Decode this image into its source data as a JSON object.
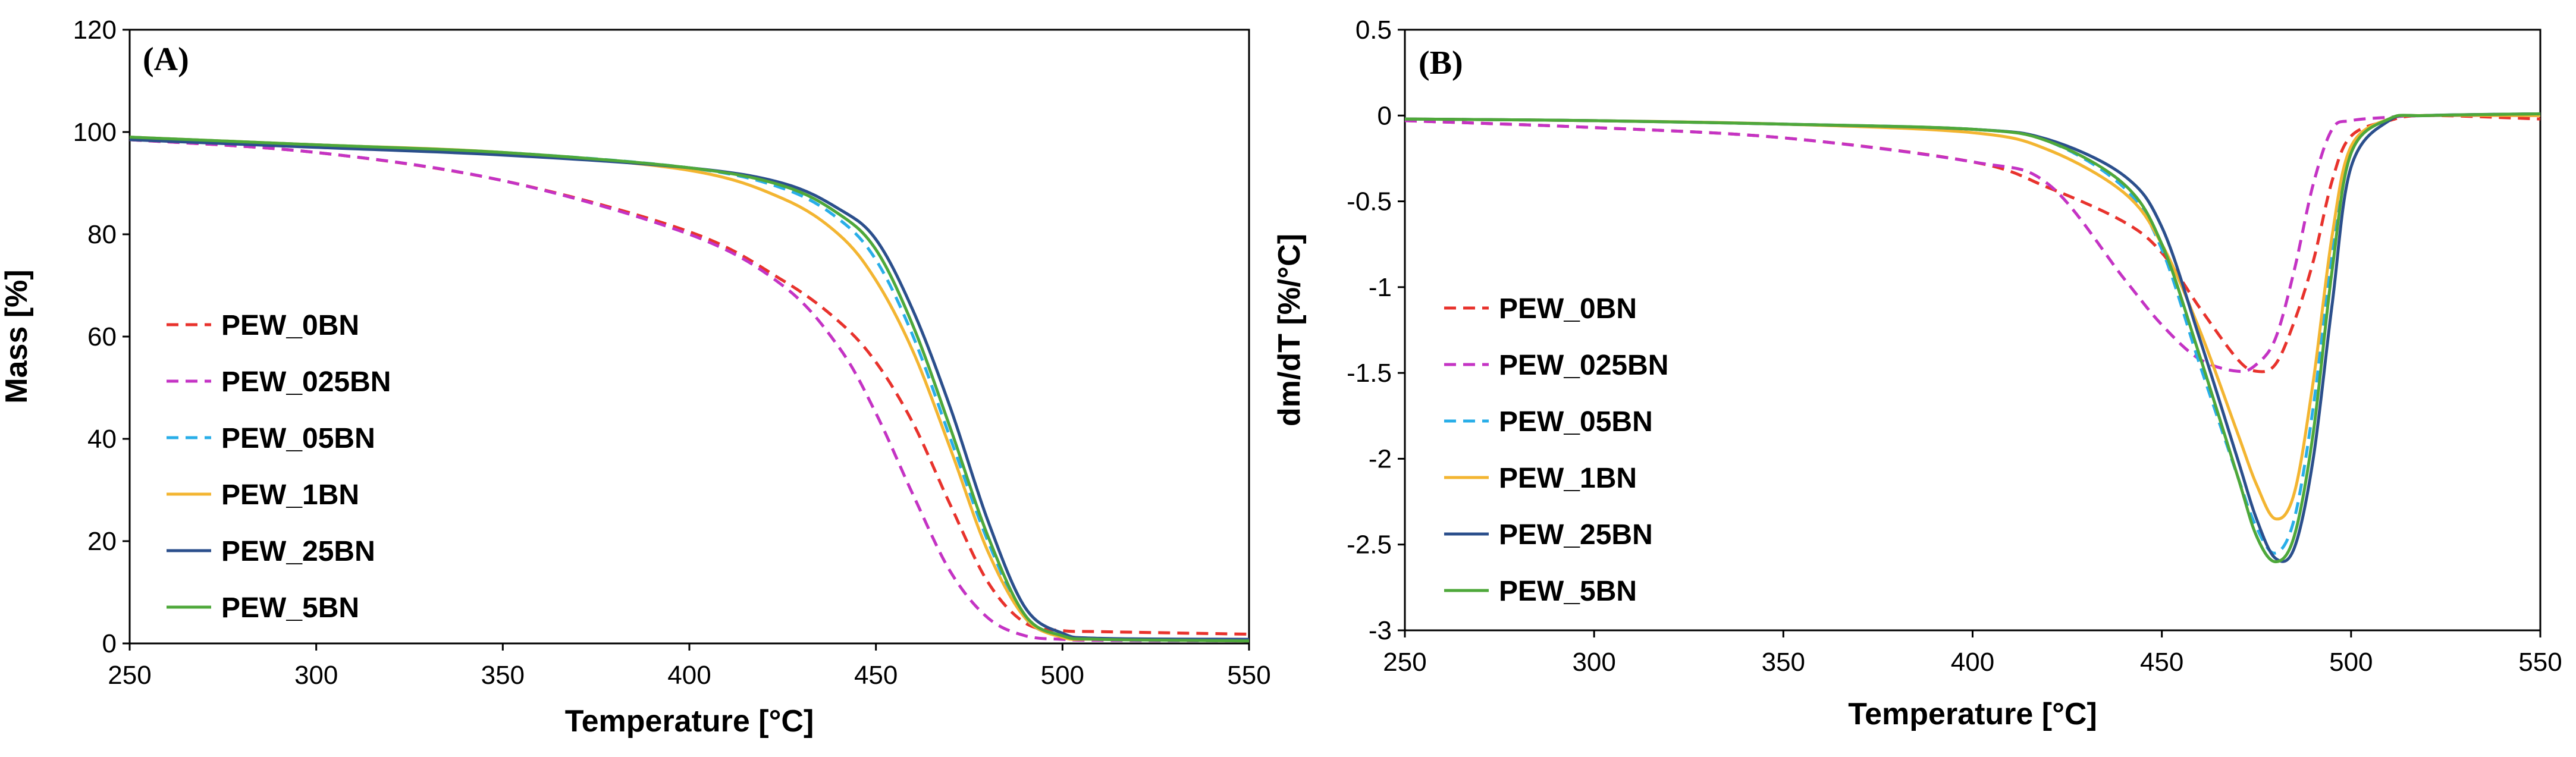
{
  "chart_data": [
    {
      "type": "line",
      "panel_label": "(A)",
      "xlabel": "Temperature [°C]",
      "ylabel": "Mass [%]",
      "xlim": [
        250,
        550
      ],
      "ylim": [
        0,
        120
      ],
      "xticks": [
        250,
        300,
        350,
        400,
        450,
        500,
        550
      ],
      "yticks": [
        0,
        20,
        40,
        60,
        80,
        100,
        120
      ],
      "x": [
        250,
        300,
        350,
        400,
        425,
        440,
        450,
        460,
        470,
        480,
        490,
        500,
        510,
        550
      ],
      "series": [
        {
          "name": "PEW_0BN",
          "color": "#e8322c",
          "dash": "dashed",
          "values": [
            98.5,
            96,
            90.5,
            80.5,
            71,
            63,
            55,
            43,
            27,
            12,
            4,
            2.5,
            2.3,
            1.8
          ]
        },
        {
          "name": "PEW_025BN",
          "color": "#c433c4",
          "dash": "dashed",
          "values": [
            98.5,
            96,
            90.5,
            80,
            70,
            58,
            45,
            29,
            14,
            5,
            1.5,
            0.8,
            0.6,
            0.5
          ]
        },
        {
          "name": "PEW_05BN",
          "color": "#29aee8",
          "dash": "dashed",
          "values": [
            99,
            97.5,
            96,
            93,
            89,
            83,
            75,
            60,
            40,
            20,
            5,
            1.5,
            0.8,
            0.5
          ]
        },
        {
          "name": "PEW_1BN",
          "color": "#f3b531",
          "dash": "solid",
          "values": [
            99,
            97.5,
            96,
            92.5,
            87,
            80,
            71,
            57,
            38,
            18,
            5,
            1.2,
            0.8,
            0.5
          ]
        },
        {
          "name": "PEW_25BN",
          "color": "#2b4f8c",
          "dash": "solid",
          "values": [
            98.5,
            97,
            95.5,
            93,
            90,
            85,
            79,
            65,
            46,
            24,
            7,
            2,
            1,
            0.8
          ]
        },
        {
          "name": "PEW_5BN",
          "color": "#4ea83a",
          "dash": "solid",
          "values": [
            99,
            97.5,
            96,
            93,
            89.5,
            84,
            77,
            62,
            42,
            21,
            5.5,
            1.5,
            0.8,
            0.5
          ]
        }
      ]
    },
    {
      "type": "line",
      "panel_label": "(B)",
      "xlabel": "Temperature [°C]",
      "ylabel": "dm/dT  [%/°C]",
      "xlim": [
        250,
        550
      ],
      "ylim": [
        -3,
        0.5
      ],
      "xticks": [
        250,
        300,
        350,
        400,
        450,
        500,
        550
      ],
      "yticks": [
        0.5,
        0,
        -0.5,
        -1,
        -1.5,
        -2,
        -2.5,
        -3
      ],
      "ytick_labels": [
        "0.5",
        "0",
        "-0.5",
        "-1",
        "-1.5",
        "-2",
        "-2.5",
        "-3"
      ],
      "x": [
        250,
        300,
        350,
        400,
        420,
        440,
        450,
        460,
        470,
        475,
        480,
        485,
        490,
        495,
        500,
        510,
        520,
        550
      ],
      "series": [
        {
          "name": "PEW_0BN",
          "color": "#e8322c",
          "dash": "dashed",
          "values": [
            -0.03,
            -0.07,
            -0.13,
            -0.27,
            -0.42,
            -0.62,
            -0.8,
            -1.12,
            -1.42,
            -1.49,
            -1.45,
            -1.2,
            -0.85,
            -0.38,
            -0.12,
            -0.03,
            0,
            -0.02
          ]
        },
        {
          "name": "PEW_025BN",
          "color": "#c433c4",
          "dash": "dashed",
          "values": [
            -0.03,
            -0.07,
            -0.13,
            -0.27,
            -0.4,
            -0.95,
            -1.22,
            -1.42,
            -1.49,
            -1.45,
            -1.3,
            -0.9,
            -0.4,
            -0.08,
            -0.03,
            -0.01,
            0,
            0
          ]
        },
        {
          "name": "PEW_05BN",
          "color": "#29aee8",
          "dash": "dashed",
          "values": [
            -0.02,
            -0.03,
            -0.05,
            -0.08,
            -0.15,
            -0.42,
            -0.78,
            -1.45,
            -2.1,
            -2.4,
            -2.55,
            -2.35,
            -1.7,
            -0.8,
            -0.2,
            -0.02,
            0,
            0.01
          ]
        },
        {
          "name": "PEW_1BN",
          "color": "#f3b531",
          "dash": "solid",
          "values": [
            -0.02,
            -0.03,
            -0.05,
            -0.1,
            -0.2,
            -0.45,
            -0.75,
            -1.25,
            -1.85,
            -2.15,
            -2.35,
            -2.2,
            -1.55,
            -0.7,
            -0.18,
            -0.02,
            0,
            0
          ]
        },
        {
          "name": "PEW_25BN",
          "color": "#2b4f8c",
          "dash": "solid",
          "values": [
            -0.02,
            -0.03,
            -0.05,
            -0.08,
            -0.14,
            -0.35,
            -0.65,
            -1.3,
            -2.0,
            -2.35,
            -2.58,
            -2.52,
            -2.0,
            -1.1,
            -0.3,
            -0.03,
            0,
            0.01
          ]
        },
        {
          "name": "PEW_5BN",
          "color": "#4ea83a",
          "dash": "solid",
          "values": [
            -0.02,
            -0.03,
            -0.05,
            -0.08,
            -0.15,
            -0.4,
            -0.75,
            -1.4,
            -2.1,
            -2.45,
            -2.6,
            -2.45,
            -1.85,
            -0.9,
            -0.22,
            -0.02,
            0,
            0.01
          ]
        }
      ]
    }
  ]
}
